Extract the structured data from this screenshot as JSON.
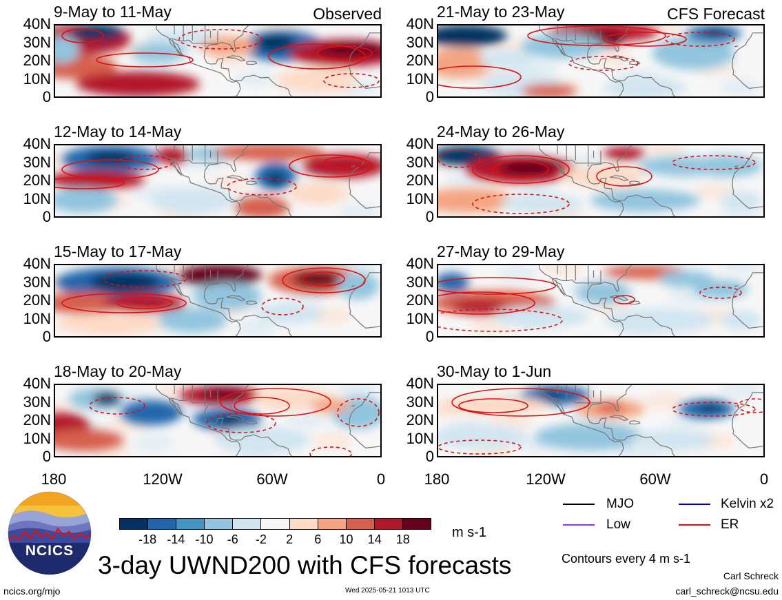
{
  "left_tag": "Observed",
  "right_tag": "CFS Forecast",
  "panels": {
    "l1": {
      "title": "9-May to 11-May"
    },
    "l2": {
      "title": "12-May to 14-May"
    },
    "l3": {
      "title": "15-May to 17-May"
    },
    "l4": {
      "title": "18-May to 20-May"
    },
    "r1": {
      "title": "21-May to 23-May"
    },
    "r2": {
      "title": "24-May to 26-May"
    },
    "r3": {
      "title": "27-May to 29-May"
    },
    "r4": {
      "title": "30-May to 1-Jun"
    }
  },
  "y_ticks": [
    "40N",
    "30N",
    "20N",
    "10N",
    "0"
  ],
  "x_ticks": [
    "180",
    "120W",
    "60W",
    "0"
  ],
  "colorbar": {
    "colors": [
      "#053061",
      "#2166ac",
      "#4393c3",
      "#92c5de",
      "#d1e5f0",
      "#f7f7f7",
      "#fddbc7",
      "#f4a582",
      "#d6604d",
      "#b2182b",
      "#67001f"
    ],
    "labels": [
      "-18",
      "-14",
      "-10",
      "-6",
      "-2",
      "2",
      "6",
      "10",
      "14",
      "18"
    ],
    "unit": "m s-1"
  },
  "legend": {
    "mjo": {
      "label": "MJO",
      "color": "#000000"
    },
    "kelvin": {
      "label": "Kelvin x2",
      "color": "#0000cc"
    },
    "low": {
      "label": "Low",
      "color": "#9b30ff"
    },
    "er": {
      "label": "ER",
      "color": "#e01010"
    }
  },
  "contour_note": "Contours every 4 m s-1",
  "main_title": "3-day UWND200 with CFS forecasts",
  "logo_text": "NCICS",
  "url": "ncics.org/mjo",
  "timestamp": "Wed 2025-05-21 1013 UTC",
  "author": "Carl Schreck",
  "email": "carl_schreck@ncsu.edu"
}
